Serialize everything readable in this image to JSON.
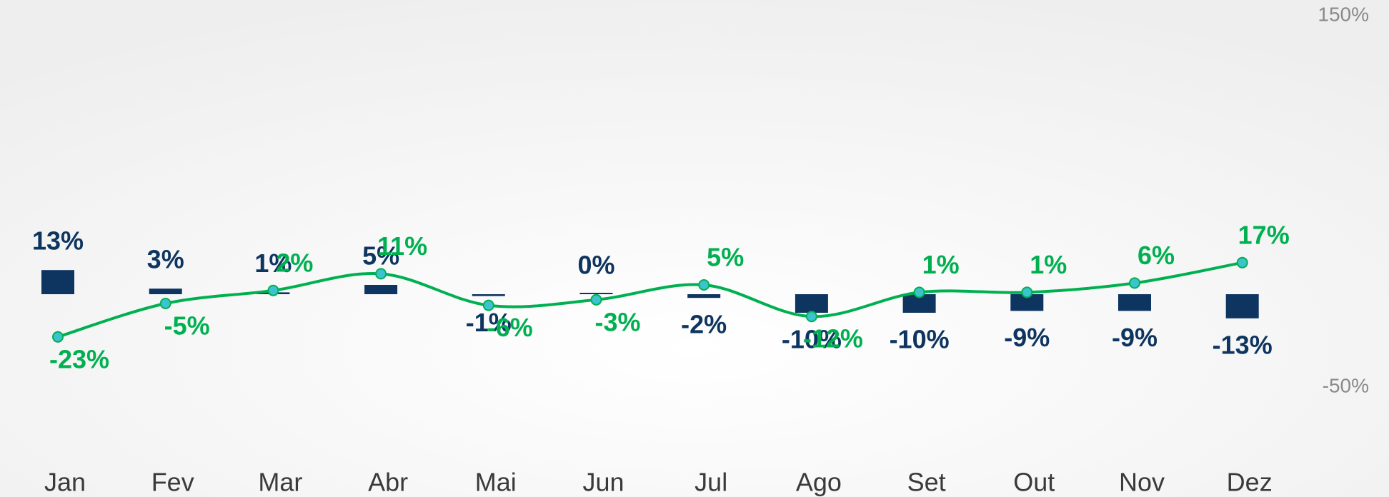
{
  "chart_data": {
    "type": "combo",
    "categories": [
      "Jan",
      "Fev",
      "Mar",
      "Abr",
      "Mai",
      "Jun",
      "Jul",
      "Ago",
      "Set",
      "Out",
      "Nov",
      "Dez"
    ],
    "series": [
      {
        "type": "bar",
        "color": "#0e3560",
        "values": [
          13,
          3,
          1,
          5,
          -1,
          0,
          -2,
          -10,
          -10,
          -9,
          -9,
          -13
        ],
        "value_labels": [
          "13%",
          "3%",
          "1%",
          "5%",
          "-1%",
          "0%",
          "-2%",
          "-10%",
          "-10%",
          "-9%",
          "-9%",
          "-13%"
        ]
      },
      {
        "type": "line",
        "color": "#00b050",
        "marker_color": "#3cc3cf",
        "values": [
          -23,
          -5,
          2,
          11,
          -6,
          -3,
          5,
          -12,
          1,
          1,
          6,
          17
        ],
        "value_labels": [
          "-23%",
          "-5%",
          "2%",
          "11%",
          "-6%",
          "-3%",
          "5%",
          "-12%",
          "1%",
          "1%",
          "6%",
          "17%"
        ]
      }
    ],
    "ylim": [
      -50,
      150
    ],
    "yticks": [
      {
        "value": -50,
        "label": "-50%"
      },
      {
        "value": 150,
        "label": "150%"
      }
    ]
  }
}
